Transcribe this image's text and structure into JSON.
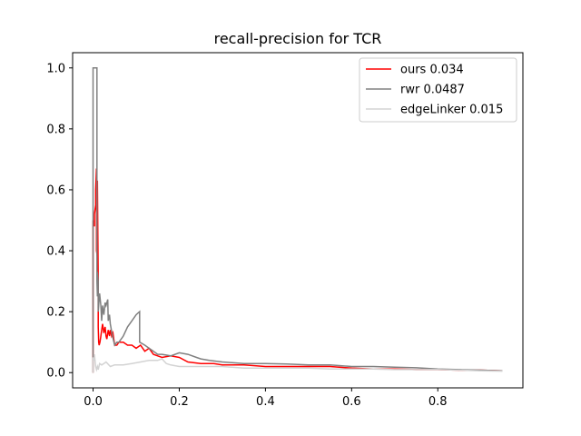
{
  "chart_data": {
    "type": "line",
    "title": "recall-precision for TCR",
    "xlabel": "",
    "ylabel": "",
    "xlim": [
      -0.0475,
      0.9975
    ],
    "ylim": [
      -0.05,
      1.05
    ],
    "xticks": [
      0.0,
      0.2,
      0.4,
      0.6,
      0.8
    ],
    "xtick_labels": [
      "0.0",
      "0.2",
      "0.4",
      "0.6",
      "0.8"
    ],
    "yticks": [
      0.0,
      0.2,
      0.4,
      0.6,
      0.8,
      1.0
    ],
    "ytick_labels": [
      "0.0",
      "0.2",
      "0.4",
      "0.6",
      "0.8",
      "1.0"
    ],
    "grid": false,
    "legend_position": "top-right",
    "series": [
      {
        "name": "ours 0.034",
        "color": "#ff0000",
        "x": [
          0.0,
          0.0,
          0.003,
          0.003,
          0.006,
          0.006,
          0.008,
          0.008,
          0.01,
          0.01,
          0.012,
          0.012,
          0.013,
          0.014,
          0.016,
          0.018,
          0.02,
          0.022,
          0.025,
          0.028,
          0.03,
          0.032,
          0.035,
          0.038,
          0.04,
          0.043,
          0.046,
          0.05,
          0.055,
          0.06,
          0.07,
          0.08,
          0.09,
          0.1,
          0.11,
          0.12,
          0.13,
          0.14,
          0.15,
          0.16,
          0.18,
          0.2,
          0.22,
          0.25,
          0.28,
          0.3,
          0.35,
          0.4,
          0.45,
          0.5,
          0.55,
          0.6,
          0.65,
          0.7,
          0.75,
          0.8,
          0.85,
          0.9,
          0.95
        ],
        "y": [
          0.0,
          0.5,
          0.48,
          0.52,
          0.55,
          0.6,
          0.67,
          0.4,
          0.38,
          0.63,
          0.3,
          0.15,
          0.1,
          0.09,
          0.1,
          0.12,
          0.14,
          0.16,
          0.13,
          0.15,
          0.12,
          0.11,
          0.14,
          0.12,
          0.14,
          0.12,
          0.13,
          0.09,
          0.09,
          0.1,
          0.1,
          0.09,
          0.09,
          0.08,
          0.09,
          0.07,
          0.08,
          0.06,
          0.055,
          0.05,
          0.055,
          0.05,
          0.035,
          0.03,
          0.03,
          0.025,
          0.025,
          0.02,
          0.02,
          0.02,
          0.02,
          0.015,
          0.012,
          0.012,
          0.01,
          0.01,
          0.008,
          0.008,
          0.006
        ]
      },
      {
        "name": "rwr 0.0487",
        "color": "#808080",
        "x": [
          0.0,
          0.0,
          0.003,
          0.003,
          0.009,
          0.009,
          0.01,
          0.01,
          0.012,
          0.012,
          0.015,
          0.018,
          0.02,
          0.022,
          0.025,
          0.028,
          0.03,
          0.034,
          0.035,
          0.038,
          0.04,
          0.045,
          0.05,
          0.055,
          0.06,
          0.07,
          0.08,
          0.09,
          0.1,
          0.108,
          0.108,
          0.12,
          0.13,
          0.14,
          0.15,
          0.16,
          0.18,
          0.2,
          0.22,
          0.24,
          0.25,
          0.27,
          0.3,
          0.35,
          0.4,
          0.45,
          0.5,
          0.55,
          0.6,
          0.65,
          0.7,
          0.75,
          0.8,
          0.85,
          0.9,
          0.95
        ],
        "y": [
          0.0,
          1.0,
          1.0,
          1.0,
          1.0,
          0.3,
          0.25,
          0.33,
          0.3,
          0.2,
          0.26,
          0.22,
          0.17,
          0.22,
          0.19,
          0.23,
          0.22,
          0.24,
          0.17,
          0.19,
          0.16,
          0.12,
          0.09,
          0.1,
          0.1,
          0.12,
          0.15,
          0.17,
          0.19,
          0.2,
          0.1,
          0.09,
          0.08,
          0.07,
          0.06,
          0.06,
          0.055,
          0.065,
          0.06,
          0.05,
          0.045,
          0.04,
          0.035,
          0.03,
          0.03,
          0.028,
          0.025,
          0.025,
          0.02,
          0.02,
          0.018,
          0.016,
          0.012,
          0.01,
          0.008,
          0.006
        ]
      },
      {
        "name": "edgeLinker 0.015",
        "color": "#d3d3d3",
        "x": [
          0.0,
          0.0,
          0.003,
          0.003,
          0.006,
          0.008,
          0.01,
          0.012,
          0.015,
          0.02,
          0.025,
          0.03,
          0.04,
          0.05,
          0.07,
          0.09,
          0.11,
          0.13,
          0.15,
          0.16,
          0.17,
          0.18,
          0.2,
          0.25,
          0.3,
          0.35,
          0.4,
          0.45,
          0.5,
          0.55,
          0.6,
          0.65,
          0.7,
          0.75,
          0.8,
          0.85,
          0.9,
          0.95
        ],
        "y": [
          0.0,
          0.05,
          0.04,
          0.06,
          0.02,
          0.01,
          0.02,
          0.01,
          0.03,
          0.025,
          0.03,
          0.035,
          0.02,
          0.025,
          0.025,
          0.03,
          0.035,
          0.04,
          0.04,
          0.045,
          0.03,
          0.025,
          0.02,
          0.02,
          0.02,
          0.015,
          0.015,
          0.015,
          0.015,
          0.012,
          0.012,
          0.012,
          0.01,
          0.01,
          0.01,
          0.008,
          0.006,
          0.005
        ]
      }
    ]
  }
}
